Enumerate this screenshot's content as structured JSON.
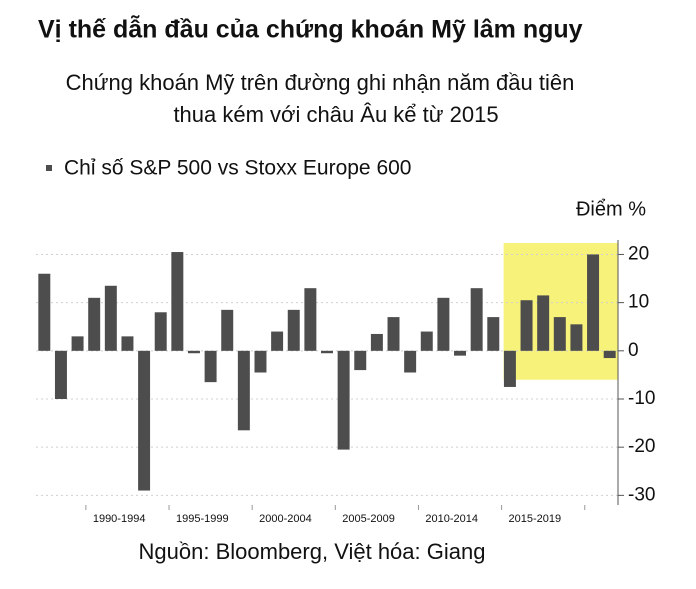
{
  "chart_data": {
    "type": "bar",
    "title": "Vị thế dẫn đầu của chứng khoán Mỹ lâm nguy",
    "subtitle": [
      "Chứng khoán Mỹ trên đường ghi nhận năm đầu tiên",
      "thua kém với châu Âu kể từ 2015"
    ],
    "y_axis_label": "Điểm %",
    "source": "Nguồn: Bloomberg, Việt hóa: Giang",
    "series": [
      {
        "name": "Chỉ số S&P 500 vs Stoxx Europe 600",
        "color": "#4d4d4d",
        "values": [
          16,
          -10,
          3,
          11,
          13.5,
          3,
          -29,
          8,
          20.5,
          -0.5,
          -6.5,
          8.5,
          -16.5,
          -4.5,
          4,
          8.5,
          13,
          -0.5,
          -20.5,
          -4,
          3.5,
          7,
          -4.5,
          4,
          11,
          -1,
          13,
          7,
          -7.5,
          10.5,
          11.5,
          7,
          5.5,
          20,
          -1.5
        ]
      }
    ],
    "categories": [
      null,
      null,
      null,
      null,
      "1990-1994",
      null,
      null,
      null,
      null,
      "1995-1999",
      null,
      null,
      null,
      null,
      "2000-2004",
      null,
      null,
      null,
      null,
      "2005-2009",
      null,
      null,
      null,
      null,
      "2010-2014",
      null,
      null,
      null,
      null,
      "2015-2019",
      null,
      null,
      null,
      null,
      null
    ],
    "ylim": [
      -32,
      23
    ],
    "yticks": [
      -30,
      -20,
      -10,
      0,
      10,
      20
    ],
    "grid": true,
    "highlight": {
      "start": 28,
      "end": 34,
      "color": "#f7f27a"
    }
  }
}
